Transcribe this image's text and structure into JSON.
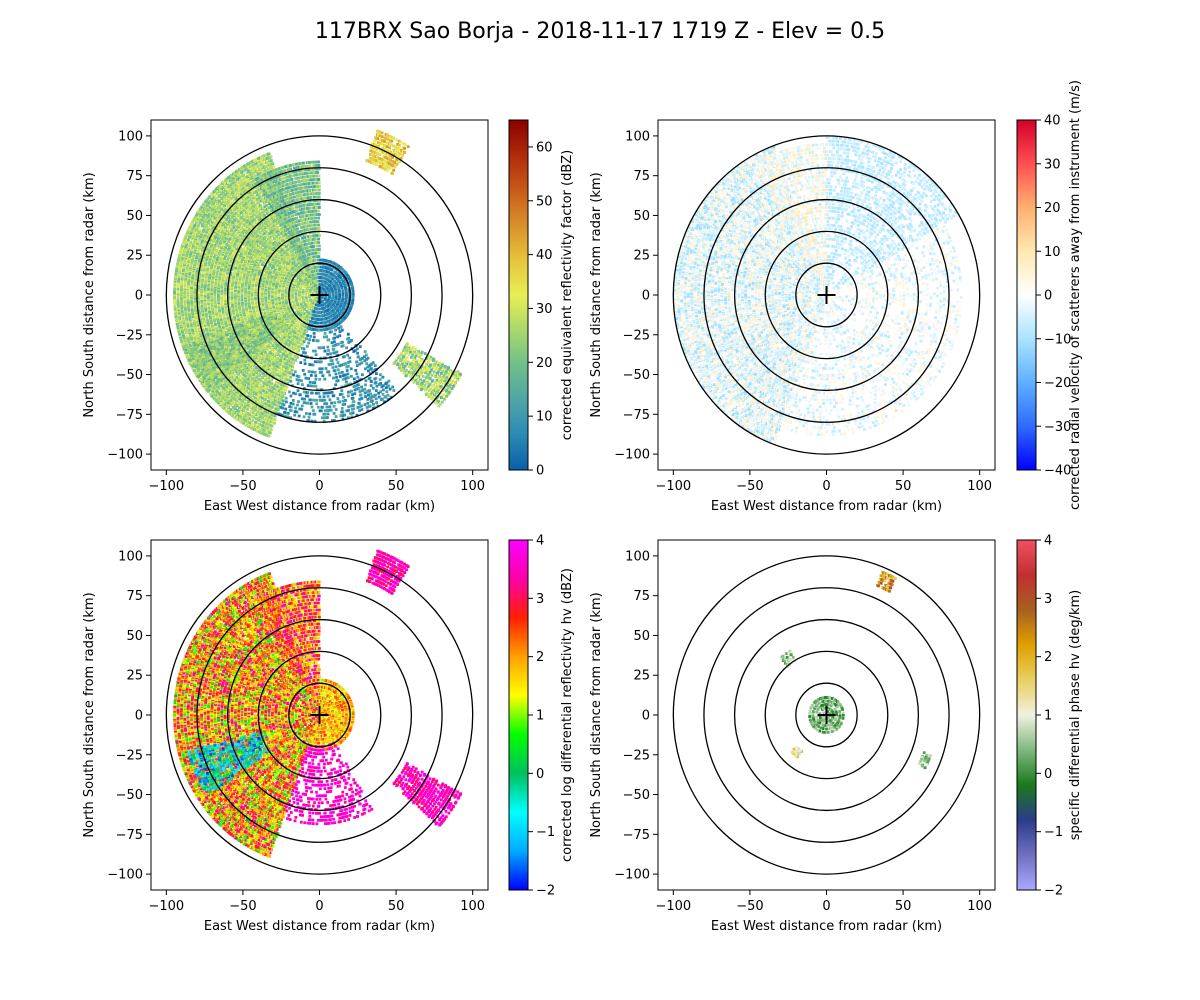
{
  "figure": {
    "title": "117BRX Sao Borja - 2018-11-17 1719 Z -  Elev = 0.5"
  },
  "chart_data": [
    {
      "type": "heatmap",
      "title": "",
      "xlabel": "East West distance from radar (km)",
      "ylabel": "North South distance from radar (km)",
      "xlim": [
        -110,
        110
      ],
      "ylim": [
        -110,
        110
      ],
      "xticks": [
        -100,
        -50,
        0,
        50,
        100
      ],
      "yticks": [
        -100,
        -75,
        -50,
        -25,
        0,
        25,
        50,
        75,
        100
      ],
      "range_rings_km": [
        20,
        40,
        60,
        80,
        100
      ],
      "colorbar": {
        "label": "corrected equivalent reflectivity factor (dBZ)",
        "min": 0,
        "max": 65,
        "ticks": [
          0,
          10,
          20,
          30,
          40,
          50,
          60
        ],
        "colors": [
          "#0a5fa8",
          "#2a8ab5",
          "#4fa6a6",
          "#6fbf8a",
          "#a9d86b",
          "#e8ef55",
          "#e6c43a",
          "#d8902a",
          "#c95a18",
          "#b02a0a",
          "#8b0000"
        ]
      }
    },
    {
      "type": "heatmap",
      "title": "",
      "xlabel": "East West distance from radar (km)",
      "ylabel": "North South distance from radar (km)",
      "xlim": [
        -110,
        110
      ],
      "ylim": [
        -110,
        110
      ],
      "xticks": [
        -100,
        -50,
        0,
        50,
        100
      ],
      "yticks": [
        -100,
        -75,
        -50,
        -25,
        0,
        25,
        50,
        75,
        100
      ],
      "range_rings_km": [
        20,
        40,
        60,
        80,
        100
      ],
      "colorbar": {
        "label": "corrected radial velocity of scatterers away from instrument (m/s)",
        "min": -40,
        "max": 40,
        "ticks": [
          -40,
          -30,
          -20,
          -10,
          0,
          10,
          20,
          30,
          40
        ],
        "colors": [
          "#0000ff",
          "#2f6bff",
          "#5fb0ff",
          "#a8e4ff",
          "#ffffff",
          "#ffe8b0",
          "#ffb070",
          "#ff5050",
          "#d4002a"
        ]
      }
    },
    {
      "type": "heatmap",
      "title": "",
      "xlabel": "East West distance from radar (km)",
      "ylabel": "North South distance from radar (km)",
      "xlim": [
        -110,
        110
      ],
      "ylim": [
        -110,
        110
      ],
      "xticks": [
        -100,
        -50,
        0,
        50,
        100
      ],
      "yticks": [
        -100,
        -75,
        -50,
        -25,
        0,
        25,
        50,
        75,
        100
      ],
      "range_rings_km": [
        20,
        40,
        60,
        80,
        100
      ],
      "colorbar": {
        "label": "corrected log differential reflectivity hv (dBZ)",
        "min": -2,
        "max": 4,
        "ticks": [
          -2,
          -1,
          0,
          1,
          2,
          3,
          4
        ],
        "colors": [
          "#0000ff",
          "#00aaff",
          "#00ffff",
          "#00c060",
          "#00ff00",
          "#ffff00",
          "#ffa000",
          "#ff2000",
          "#ff00aa",
          "#ff00ff"
        ]
      }
    },
    {
      "type": "heatmap",
      "title": "",
      "xlabel": "East West distance from radar (km)",
      "ylabel": "North South distance from radar (km)",
      "xlim": [
        -110,
        110
      ],
      "ylim": [
        -110,
        110
      ],
      "xticks": [
        -100,
        -50,
        0,
        50,
        100
      ],
      "yticks": [
        -100,
        -75,
        -50,
        -25,
        0,
        25,
        50,
        75,
        100
      ],
      "range_rings_km": [
        20,
        40,
        60,
        80,
        100
      ],
      "colorbar": {
        "label": "specific differential phase hv (deg/km)",
        "min": -2,
        "max": 4,
        "ticks": [
          -2,
          -1,
          0,
          1,
          2,
          3,
          4
        ],
        "colors": [
          "#a9a9ff",
          "#6f70c0",
          "#2a3c8a",
          "#1a7a1a",
          "#7fb87f",
          "#f0f0e0",
          "#e8d060",
          "#e0a000",
          "#a86020",
          "#c03030",
          "#f05060"
        ]
      }
    }
  ]
}
